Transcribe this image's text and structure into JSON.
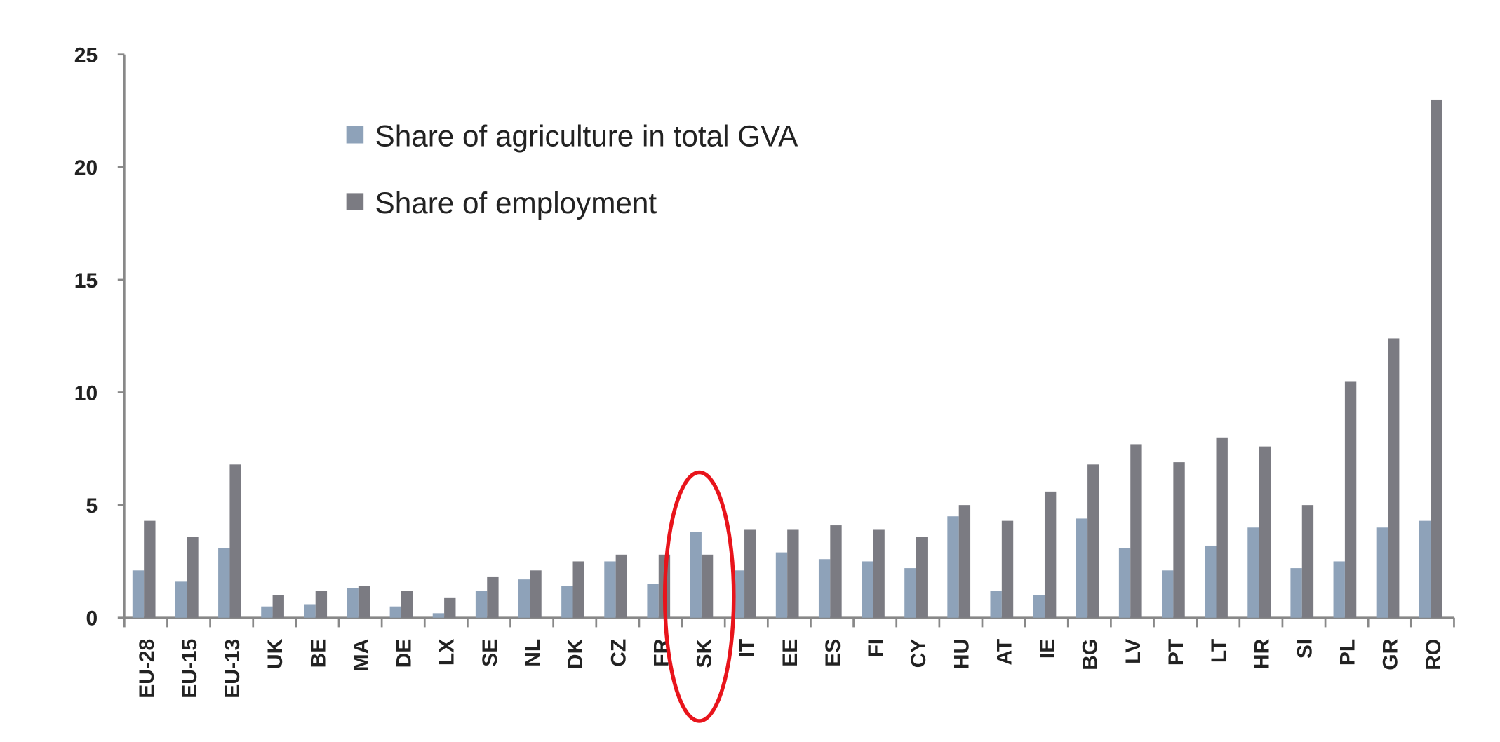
{
  "chart_data": {
    "type": "bar",
    "categories": [
      "EU-28",
      "EU-15",
      "EU-13",
      "UK",
      "BE",
      "MA",
      "DE",
      "LX",
      "SE",
      "NL",
      "DK",
      "CZ",
      "FR",
      "SK",
      "IT",
      "EE",
      "ES",
      "FI",
      "CY",
      "HU",
      "AT",
      "IE",
      "BG",
      "LV",
      "PT",
      "LT",
      "HR",
      "SI",
      "PL",
      "GR",
      "RO"
    ],
    "series": [
      {
        "name": "Share of agriculture in total GVA",
        "color": "#8ea2b9",
        "values": [
          2.1,
          1.6,
          3.1,
          0.5,
          0.6,
          1.3,
          0.5,
          0.2,
          1.2,
          1.7,
          1.4,
          2.5,
          1.5,
          3.8,
          2.1,
          2.9,
          2.6,
          2.5,
          2.2,
          4.5,
          1.2,
          1.0,
          4.4,
          3.1,
          2.1,
          3.2,
          4.0,
          2.2,
          2.5,
          4.0,
          4.3
        ]
      },
      {
        "name": "Share of employment",
        "color": "#7b7b82",
        "values": [
          4.3,
          3.6,
          6.8,
          1.0,
          1.2,
          1.4,
          1.2,
          0.9,
          1.8,
          2.1,
          2.5,
          2.8,
          2.8,
          2.8,
          3.9,
          3.9,
          4.1,
          3.9,
          3.6,
          5.0,
          4.3,
          5.6,
          6.8,
          7.7,
          6.9,
          8.0,
          7.6,
          5.0,
          10.5,
          12.4,
          23.0
        ]
      }
    ],
    "ylim": [
      0,
      25
    ],
    "yticks": [
      0,
      5,
      10,
      15,
      20,
      25
    ],
    "legend": "top-left"
  }
}
